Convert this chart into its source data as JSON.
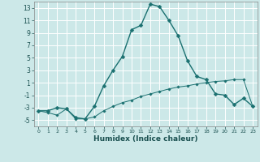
{
  "title": "",
  "xlabel": "Humidex (Indice chaleur)",
  "background_color": "#cce8e8",
  "grid_color": "#ffffff",
  "line_color": "#1a7070",
  "x_values": [
    0,
    1,
    2,
    3,
    4,
    5,
    6,
    7,
    8,
    9,
    10,
    11,
    12,
    13,
    14,
    15,
    16,
    17,
    18,
    19,
    20,
    21,
    22,
    23
  ],
  "line1_y": [
    -3.5,
    -3.5,
    -3.0,
    -3.2,
    -4.6,
    -4.8,
    -2.8,
    0.5,
    3.0,
    5.2,
    9.5,
    10.2,
    13.6,
    13.2,
    11.0,
    8.5,
    4.5,
    2.0,
    1.5,
    -0.8,
    -1.0,
    -2.5,
    -1.5,
    -2.8
  ],
  "line2_y": [
    -3.5,
    -3.8,
    -4.2,
    -3.2,
    -4.8,
    -4.8,
    -4.5,
    -3.5,
    -2.8,
    -2.2,
    -1.8,
    -1.2,
    -0.8,
    -0.4,
    0.0,
    0.3,
    0.5,
    0.8,
    1.0,
    1.2,
    1.3,
    1.5,
    1.5,
    -2.8
  ],
  "ylim": [
    -6,
    14
  ],
  "xlim": [
    -0.5,
    23.5
  ],
  "yticks": [
    -5,
    -3,
    -1,
    1,
    3,
    5,
    7,
    9,
    11,
    13
  ],
  "xticks": [
    0,
    1,
    2,
    3,
    4,
    5,
    6,
    7,
    8,
    9,
    10,
    11,
    12,
    13,
    14,
    15,
    16,
    17,
    18,
    19,
    20,
    21,
    22,
    23
  ]
}
